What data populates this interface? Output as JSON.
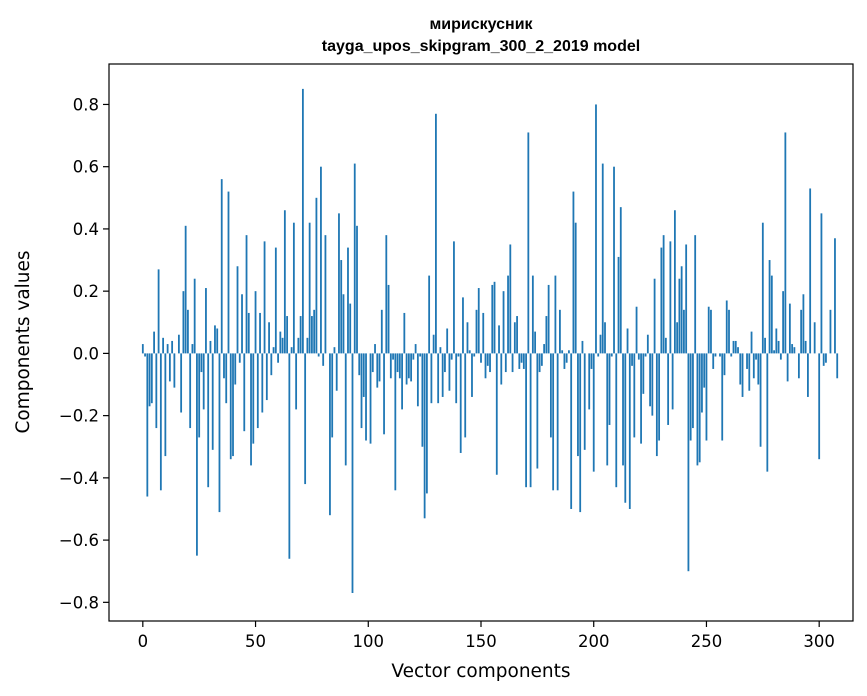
{
  "chart_data": {
    "type": "bar",
    "title_line1": "мирискусник",
    "title_line2": "tayga_upos_skipgram_300_2_2019 model",
    "xlabel": "Vector components",
    "ylabel": "Components values",
    "xlim": [
      -15,
      315
    ],
    "ylim": [
      -0.86,
      0.93
    ],
    "xticks": [
      0,
      50,
      100,
      150,
      200,
      250,
      300
    ],
    "xtick_labels": [
      "0",
      "50",
      "100",
      "150",
      "200",
      "250",
      "300"
    ],
    "yticks": [
      -0.8,
      -0.6,
      -0.4,
      -0.2,
      0.0,
      0.2,
      0.4,
      0.6,
      0.8
    ],
    "ytick_labels": [
      "−0.8",
      "−0.6",
      "−0.4",
      "−0.2",
      "0.0",
      "0.2",
      "0.4",
      "0.6",
      "0.8"
    ],
    "bar_color": "#1f77b4",
    "values": [
      0.03,
      -0.01,
      -0.46,
      -0.17,
      -0.16,
      0.07,
      -0.24,
      0.27,
      -0.44,
      0.05,
      -0.33,
      0.03,
      -0.09,
      0.04,
      -0.11,
      0.0,
      0.06,
      -0.19,
      0.2,
      0.41,
      0.14,
      -0.24,
      0.03,
      0.24,
      -0.65,
      -0.27,
      -0.06,
      -0.18,
      0.21,
      -0.43,
      0.04,
      -0.31,
      0.09,
      0.08,
      -0.51,
      0.56,
      -0.08,
      -0.16,
      0.52,
      -0.34,
      -0.33,
      -0.1,
      0.28,
      -0.03,
      0.19,
      -0.25,
      0.38,
      0.13,
      -0.36,
      -0.29,
      0.2,
      -0.24,
      0.13,
      -0.19,
      0.36,
      -0.15,
      0.1,
      -0.07,
      0.02,
      0.34,
      -0.03,
      0.07,
      0.05,
      0.46,
      0.12,
      -0.66,
      0.02,
      0.42,
      -0.18,
      0.05,
      0.12,
      0.85,
      -0.42,
      0.05,
      0.42,
      0.12,
      0.14,
      0.5,
      -0.01,
      0.6,
      -0.04,
      0.38,
      0.0,
      -0.52,
      -0.27,
      0.02,
      -0.12,
      0.45,
      0.3,
      0.19,
      -0.36,
      0.34,
      0.16,
      -0.77,
      0.61,
      0.41,
      -0.07,
      -0.24,
      -0.14,
      -0.28,
      0.0,
      -0.29,
      -0.06,
      0.03,
      -0.11,
      -0.09,
      0.14,
      -0.26,
      0.38,
      0.22,
      -0.08,
      -0.02,
      -0.44,
      -0.06,
      -0.08,
      -0.18,
      0.13,
      -0.1,
      -0.08,
      -0.09,
      -0.02,
      0.03,
      -0.17,
      -0.01,
      -0.3,
      -0.53,
      -0.45,
      0.25,
      -0.16,
      0.06,
      0.77,
      -0.16,
      0.02,
      -0.14,
      -0.06,
      0.08,
      -0.12,
      -0.02,
      0.36,
      -0.16,
      -0.01,
      -0.32,
      0.18,
      -0.27,
      0.1,
      0.01,
      -0.14,
      -0.01,
      0.14,
      0.21,
      -0.03,
      0.13,
      -0.08,
      -0.04,
      -0.06,
      0.22,
      0.23,
      -0.39,
      0.09,
      -0.1,
      0.2,
      -0.06,
      0.25,
      0.35,
      -0.06,
      0.1,
      0.12,
      -0.05,
      -0.03,
      -0.05,
      -0.43,
      0.71,
      -0.43,
      0.25,
      0.07,
      -0.37,
      -0.06,
      -0.04,
      0.03,
      0.12,
      0.22,
      -0.27,
      -0.44,
      0.25,
      -0.44,
      0.14,
      0.01,
      -0.05,
      -0.03,
      0.01,
      -0.5,
      0.52,
      0.42,
      -0.33,
      -0.51,
      0.04,
      -0.31,
      0.0,
      -0.18,
      -0.05,
      -0.38,
      0.8,
      -0.01,
      0.06,
      0.61,
      0.1,
      -0.36,
      -0.23,
      -0.01,
      0.6,
      -0.43,
      0.31,
      0.47,
      -0.36,
      -0.48,
      0.08,
      -0.5,
      -0.04,
      -0.27,
      0.15,
      -0.02,
      -0.29,
      -0.13,
      -0.01,
      0.06,
      -0.17,
      -0.2,
      0.24,
      -0.33,
      -0.28,
      0.34,
      0.38,
      0.05,
      -0.23,
      0.36,
      -0.18,
      0.46,
      0.1,
      0.24,
      0.28,
      0.14,
      0.35,
      -0.7,
      -0.28,
      -0.24,
      0.38,
      -0.36,
      -0.35,
      -0.19,
      -0.11,
      -0.28,
      0.15,
      0.14,
      -0.05,
      -0.01,
      0.0,
      -0.01,
      -0.28,
      -0.07,
      0.17,
      0.14,
      -0.01,
      0.04,
      0.04,
      0.02,
      -0.1,
      -0.14,
      0.0,
      -0.05,
      -0.12,
      0.07,
      -0.08,
      -0.02,
      -0.1,
      -0.3,
      0.42,
      0.05,
      -0.38,
      0.3,
      0.25,
      0.01,
      0.08,
      0.04,
      -0.02,
      0.2,
      0.71,
      -0.09,
      0.16,
      0.03,
      0.02,
      0.0,
      -0.08,
      0.14,
      0.19,
      0.04,
      -0.14,
      0.53,
      0.0,
      0.1,
      0.0,
      -0.34,
      0.45,
      -0.04,
      -0.03,
      0.0,
      0.14,
      0.0,
      0.37,
      -0.08
    ]
  }
}
